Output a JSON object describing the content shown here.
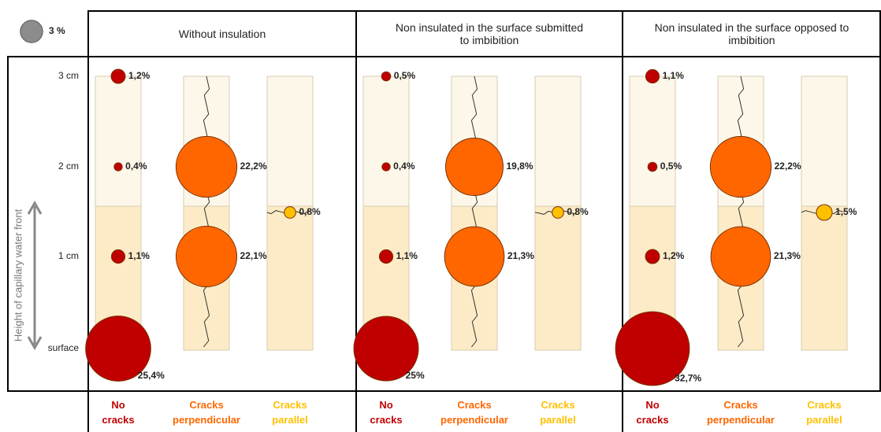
{
  "chart_data": {
    "type": "bubble",
    "legend": {
      "value": 3,
      "label": "3 %"
    },
    "y_label": "Height of capillary water front",
    "levels": [
      "3 cm",
      "2 cm",
      "1 cm",
      "surface"
    ],
    "panels": [
      {
        "title": "Without insulation",
        "series": [
          {
            "name": "No cracks",
            "color": "#c00000",
            "values": [
              1.2,
              0.4,
              1.1,
              25.4
            ],
            "value_labels": [
              "1,2%",
              "0,4%",
              "1,1%",
              "25,4%"
            ]
          },
          {
            "name": "Cracks perpendicular",
            "color": "#ff6600",
            "values": [
              null,
              22.2,
              22.1,
              null
            ],
            "value_labels": [
              null,
              "22,2%",
              "22,1%",
              null
            ]
          },
          {
            "name": "Cracks parallel",
            "color": "#ffc000",
            "values": [
              0.8
            ],
            "value_labels": [
              "0,8%"
            ]
          }
        ]
      },
      {
        "title": "Non insulated in the surface submitted to imbibition",
        "series": [
          {
            "name": "No cracks",
            "color": "#c00000",
            "values": [
              0.5,
              0.4,
              1.1,
              25
            ],
            "value_labels": [
              "0,5%",
              "0,4%",
              "1,1%",
              "25%"
            ]
          },
          {
            "name": "Cracks perpendicular",
            "color": "#ff6600",
            "values": [
              null,
              19.8,
              21.3,
              null
            ],
            "value_labels": [
              null,
              "19,8%",
              "21,3%",
              null
            ]
          },
          {
            "name": "Cracks parallel",
            "color": "#ffc000",
            "values": [
              0.8
            ],
            "value_labels": [
              "0,8%"
            ]
          }
        ]
      },
      {
        "title": "Non insulated in the surface opposed to imbibition",
        "series": [
          {
            "name": "No cracks",
            "color": "#c00000",
            "values": [
              1.1,
              0.5,
              1.2,
              32.7
            ],
            "value_labels": [
              "1,1%",
              "0,5%",
              "1,2%",
              "32,7%"
            ]
          },
          {
            "name": "Cracks perpendicular",
            "color": "#ff6600",
            "values": [
              null,
              22.2,
              21.3,
              null
            ],
            "value_labels": [
              null,
              "22,2%",
              "21,3%",
              null
            ]
          },
          {
            "name": "Cracks parallel",
            "color": "#ffc000",
            "values": [
              1.5
            ],
            "value_labels": [
              "1,5%"
            ]
          }
        ]
      }
    ]
  }
}
